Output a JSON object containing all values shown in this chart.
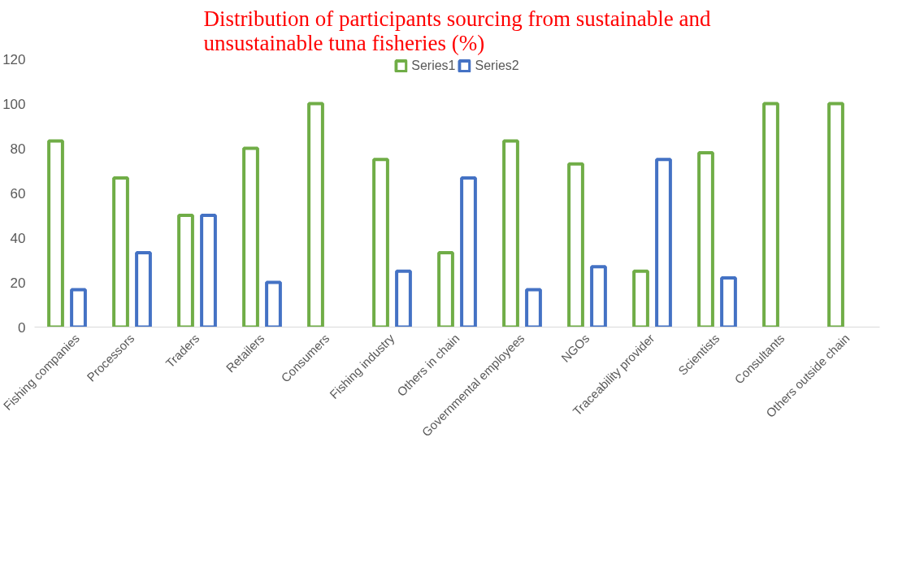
{
  "chart_data": {
    "type": "bar",
    "title": "Distribution of participants sourcing from sustainable and\nunsustainable tuna fisheries (%)",
    "categories": [
      "Fishing companies",
      "Processors",
      "Traders",
      "Retailers",
      "Consumers",
      "Fishing industry",
      "Others in chain",
      "Governmental employees",
      "NGOs",
      "Traceability provider",
      "Scientists",
      "Consultants",
      "Others outside chain"
    ],
    "series": [
      {
        "name": "Series1",
        "color": "#70ad47",
        "values": [
          83.3,
          66.7,
          50,
          80,
          100,
          75,
          33.3,
          83.3,
          73,
          25,
          78,
          100,
          100
        ]
      },
      {
        "name": "Series2",
        "color": "#4472c4",
        "values": [
          16.7,
          33.3,
          50,
          20,
          null,
          25,
          66.7,
          16.7,
          27,
          75,
          22,
          null,
          null
        ]
      }
    ],
    "ylim": [
      0,
      120
    ],
    "yticks": [
      0,
      20,
      40,
      60,
      80,
      100,
      120
    ],
    "grid": false,
    "legend": "top"
  }
}
